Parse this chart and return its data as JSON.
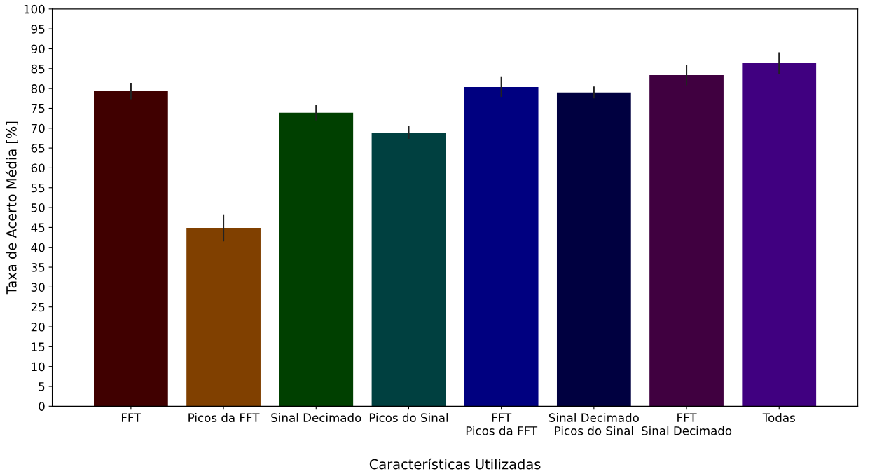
{
  "chart_data": {
    "type": "bar",
    "xlabel": "Características Utilizadas",
    "ylabel": "Taxa de Acerto Média [%]",
    "categories": [
      "FFT",
      "Picos da FFT",
      "Sinal Decimado",
      "Picos do Sinal",
      "FFT\nPicos da FFT",
      "Sinal Decimado\nPicos do Sinal",
      "FFT\nSinal Decimado",
      "Todas"
    ],
    "values": [
      79.3,
      44.9,
      73.9,
      68.9,
      80.4,
      79.0,
      83.4,
      86.4
    ],
    "errors": [
      2.0,
      3.4,
      1.9,
      1.6,
      2.5,
      1.5,
      2.6,
      2.7
    ],
    "colors": [
      "#400000",
      "#804000",
      "#004000",
      "#004040",
      "#000080",
      "#000040",
      "#400040",
      "#400080"
    ],
    "ylim": [
      0,
      100
    ],
    "yticks": [
      0,
      5,
      10,
      15,
      20,
      25,
      30,
      35,
      40,
      45,
      50,
      55,
      60,
      65,
      70,
      75,
      80,
      85,
      90,
      95,
      100
    ],
    "grid": false
  }
}
